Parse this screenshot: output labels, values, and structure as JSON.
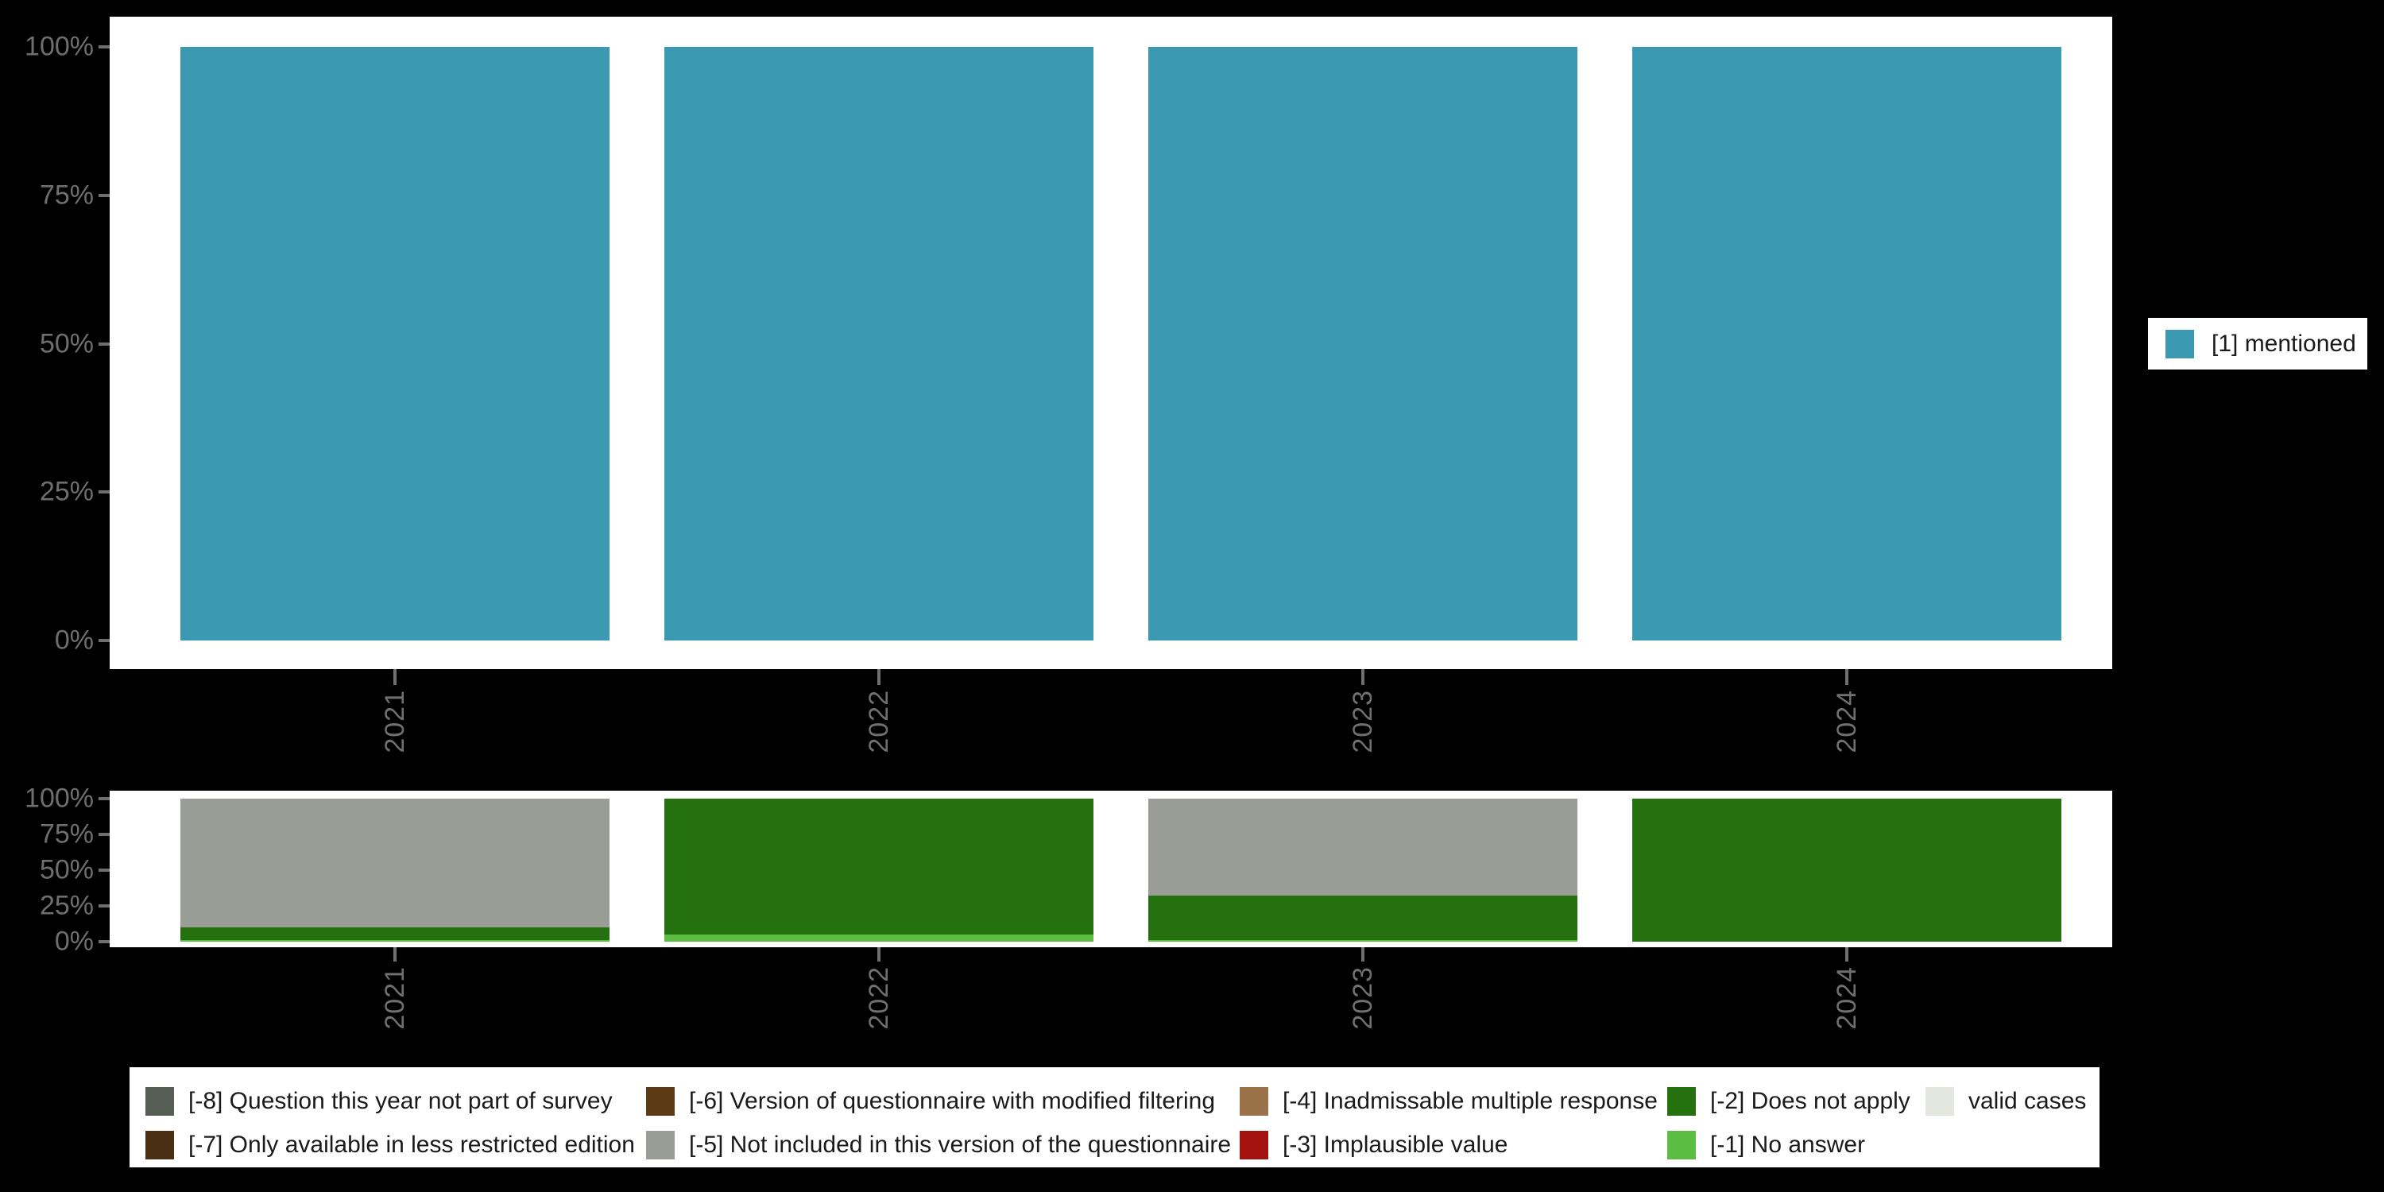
{
  "palette": {
    "background": "#000000",
    "panel": "#FFFFFF",
    "axis_text": "#6E6E6E",
    "legend_text": "#1A1A1A"
  },
  "chart_data": [
    {
      "id": "valid-values",
      "type": "bar",
      "subtype": "percent-stacked-columns",
      "title": "",
      "categories": [
        "2021",
        "2022",
        "2023",
        "2024"
      ],
      "series": [
        {
          "name": "[1] mentioned",
          "color": "#3B99B1",
          "values": [
            100,
            100,
            100,
            100
          ]
        }
      ],
      "y_ticks": [
        "100%",
        "75%",
        "50%",
        "25%",
        "0%"
      ],
      "ylim": [
        0,
        100
      ],
      "grid": "off",
      "legend_position": "right"
    },
    {
      "id": "missing-values",
      "type": "bar",
      "subtype": "percent-stacked-columns",
      "title": "",
      "categories": [
        "2021",
        "2022",
        "2023",
        "2024"
      ],
      "series": [
        {
          "name": "[-5] Not included in this version of the questionnaire",
          "color": "#9A9D95",
          "values": [
            90,
            0,
            68,
            0
          ]
        },
        {
          "name": "[-2] Does not apply",
          "color": "#26710F",
          "values": [
            9,
            95,
            31,
            100
          ]
        },
        {
          "name": "[-1] No answer",
          "color": "#5BBE43",
          "values": [
            1,
            5,
            1,
            0
          ]
        }
      ],
      "y_ticks": [
        "100%",
        "75%",
        "50%",
        "25%",
        "0%"
      ],
      "ylim": [
        0,
        100
      ],
      "grid": "off",
      "legend_position": "bottom"
    }
  ],
  "legends": {
    "right": {
      "label": "[1] mentioned",
      "color": "#3B99B1"
    },
    "bottom": {
      "columns": [
        {
          "items": [
            {
              "label": "[-8] Question this year not part of survey",
              "color": "#565E56"
            },
            {
              "label": "[-7] Only available in less restricted edition",
              "color": "#4A2F15"
            }
          ]
        },
        {
          "items": [
            {
              "label": "[-6] Version of questionnaire with modified filtering",
              "color": "#5C3A16"
            },
            {
              "label": "[-5] Not included in this version of the questionnaire",
              "color": "#9A9D95"
            }
          ]
        },
        {
          "items": [
            {
              "label": "[-4] Inadmissable multiple response",
              "color": "#9A7249"
            },
            {
              "label": "[-3] Implausible value",
              "color": "#A51310"
            }
          ]
        },
        {
          "items": [
            {
              "label": "[-2] Does not apply",
              "color": "#26710F"
            },
            {
              "label": "[-1] No answer",
              "color": "#5BBE43"
            }
          ]
        },
        {
          "items": [
            {
              "label": "valid cases",
              "color": "#E3E7DF"
            }
          ]
        }
      ]
    }
  }
}
